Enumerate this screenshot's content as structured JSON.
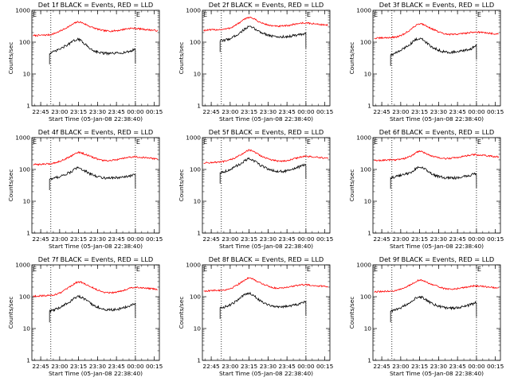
{
  "figure": {
    "series_legend": "BLACK = Events, RED = LLD"
  },
  "chart_data": [
    {
      "type": "line",
      "title": "Det 1f BLACK = Events, RED = LLD",
      "xlabel": "Start Time (05-Jan-08 22:38:40)",
      "ylabel": "Counts/sec",
      "x_ticks": [
        "22:45",
        "23:00",
        "23:15",
        "23:30",
        "23:45",
        "00:00",
        "00:15"
      ],
      "y_scale": "log",
      "ylim": [
        1,
        1000
      ],
      "y_ticks": [
        "1",
        "10",
        "100",
        "1000"
      ],
      "markers": [
        {
          "label": "E",
          "x": "22:38"
        },
        {
          "label": "E",
          "x": "00:00"
        }
      ],
      "dotted_lines_x": [
        "22:53",
        "00:00"
      ],
      "x": [
        "22:52",
        "23:00",
        "23:08",
        "23:15",
        "23:25",
        "23:35",
        "23:45",
        "23:55",
        "00:00"
      ],
      "series": [
        {
          "color": "#ff0000",
          "values": [
            170,
            220,
            320,
            430,
            300,
            230,
            230,
            270,
            270
          ]
        },
        {
          "color": "#000000",
          "values": [
            45,
            60,
            90,
            120,
            60,
            45,
            45,
            50,
            60
          ]
        }
      ]
    },
    {
      "type": "line",
      "title": "Det 2f BLACK = Events, RED = LLD",
      "xlabel": "Start Time (05-Jan-08 22:38:40)",
      "ylabel": "Counts/sec",
      "x_ticks": [
        "22:45",
        "23:00",
        "23:15",
        "23:30",
        "23:45",
        "00:00",
        "00:15"
      ],
      "y_scale": "log",
      "ylim": [
        1,
        1000
      ],
      "y_ticks": [
        "1",
        "10",
        "100",
        "1000"
      ],
      "markers": [
        {
          "label": "E",
          "x": "22:38"
        },
        {
          "label": "E",
          "x": "00:00"
        }
      ],
      "dotted_lines_x": [
        "22:53",
        "00:00"
      ],
      "x": [
        "22:52",
        "23:00",
        "23:08",
        "23:15",
        "23:25",
        "23:35",
        "23:45",
        "23:55",
        "00:00"
      ],
      "series": [
        {
          "color": "#ff0000",
          "values": [
            250,
            280,
            420,
            600,
            400,
            320,
            330,
            390,
            400
          ]
        },
        {
          "color": "#000000",
          "values": [
            110,
            130,
            200,
            300,
            200,
            150,
            150,
            170,
            180
          ]
        }
      ]
    },
    {
      "type": "line",
      "title": "Det 3f BLACK = Events, RED = LLD",
      "xlabel": "Start Time (05-Jan-08 22:38:40)",
      "ylabel": "Counts/sec",
      "x_ticks": [
        "22:45",
        "23:00",
        "23:15",
        "23:30",
        "23:45",
        "00:00",
        "00:15"
      ],
      "y_scale": "log",
      "ylim": [
        1,
        1000
      ],
      "y_ticks": [
        "1",
        "10",
        "100",
        "1000"
      ],
      "markers": [
        {
          "label": "E",
          "x": "22:38"
        },
        {
          "label": "E",
          "x": "00:00"
        }
      ],
      "dotted_lines_x": [
        "22:53",
        "00:00"
      ],
      "x": [
        "22:52",
        "23:00",
        "23:08",
        "23:15",
        "23:25",
        "23:35",
        "23:45",
        "23:55",
        "00:00"
      ],
      "series": [
        {
          "color": "#ff0000",
          "values": [
            140,
            160,
            250,
            380,
            260,
            180,
            180,
            200,
            210
          ]
        },
        {
          "color": "#000000",
          "values": [
            40,
            55,
            90,
            130,
            70,
            50,
            50,
            60,
            80
          ]
        }
      ]
    },
    {
      "type": "line",
      "title": "Det 4f BLACK = Events, RED = LLD",
      "xlabel": "Start Time (05-Jan-08 22:38:40)",
      "ylabel": "Counts/sec",
      "x_ticks": [
        "22:45",
        "23:00",
        "23:15",
        "23:30",
        "23:45",
        "00:00",
        "00:15"
      ],
      "y_scale": "log",
      "ylim": [
        1,
        1000
      ],
      "y_ticks": [
        "1",
        "10",
        "100",
        "1000"
      ],
      "markers": [
        {
          "label": "E",
          "x": "22:38"
        },
        {
          "label": "E",
          "x": "00:00"
        }
      ],
      "dotted_lines_x": [
        "22:53",
        "00:00"
      ],
      "x": [
        "22:52",
        "23:00",
        "23:08",
        "23:15",
        "23:25",
        "23:35",
        "23:45",
        "23:55",
        "00:00"
      ],
      "series": [
        {
          "color": "#ff0000",
          "values": [
            150,
            180,
            250,
            340,
            250,
            190,
            200,
            240,
            250
          ]
        },
        {
          "color": "#000000",
          "values": [
            50,
            60,
            80,
            110,
            70,
            55,
            55,
            60,
            70
          ]
        }
      ]
    },
    {
      "type": "line",
      "title": "Det 5f BLACK = Events, RED = LLD",
      "xlabel": "Start Time (05-Jan-08 22:38:40)",
      "ylabel": "Counts/sec",
      "x_ticks": [
        "22:45",
        "23:00",
        "23:15",
        "23:30",
        "23:45",
        "00:00",
        "00:15"
      ],
      "y_scale": "log",
      "ylim": [
        1,
        1000
      ],
      "y_ticks": [
        "1",
        "10",
        "100",
        "1000"
      ],
      "markers": [
        {
          "label": "E",
          "x": "22:38"
        },
        {
          "label": "E",
          "x": "00:00"
        }
      ],
      "dotted_lines_x": [
        "22:53",
        "00:00"
      ],
      "x": [
        "22:52",
        "23:00",
        "23:08",
        "23:15",
        "23:25",
        "23:35",
        "23:45",
        "23:55",
        "00:00"
      ],
      "series": [
        {
          "color": "#ff0000",
          "values": [
            170,
            200,
            280,
            400,
            260,
            190,
            190,
            240,
            260
          ]
        },
        {
          "color": "#000000",
          "values": [
            80,
            100,
            150,
            210,
            130,
            90,
            90,
            120,
            140
          ]
        }
      ]
    },
    {
      "type": "line",
      "title": "Det 6f BLACK = Events, RED = LLD",
      "xlabel": "Start Time (05-Jan-08 22:38:40)",
      "ylabel": "Counts/sec",
      "x_ticks": [
        "22:45",
        "23:00",
        "23:15",
        "23:30",
        "23:45",
        "00:00",
        "00:15"
      ],
      "y_scale": "log",
      "ylim": [
        1,
        1000
      ],
      "y_ticks": [
        "1",
        "10",
        "100",
        "1000"
      ],
      "markers": [
        {
          "label": "E",
          "x": "22:38"
        },
        {
          "label": "E",
          "x": "00:00"
        }
      ],
      "dotted_lines_x": [
        "22:53",
        "00:00"
      ],
      "x": [
        "22:52",
        "23:00",
        "23:08",
        "23:15",
        "23:25",
        "23:35",
        "23:45",
        "23:55",
        "00:00"
      ],
      "series": [
        {
          "color": "#ff0000",
          "values": [
            200,
            210,
            260,
            370,
            260,
            220,
            240,
            280,
            290
          ]
        },
        {
          "color": "#000000",
          "values": [
            55,
            65,
            80,
            120,
            70,
            55,
            55,
            65,
            75
          ]
        }
      ]
    },
    {
      "type": "line",
      "title": "Det 7f BLACK = Events, RED = LLD",
      "xlabel": "Start Time (05-Jan-08 22:38:40)",
      "ylabel": "Counts/sec",
      "x_ticks": [
        "22:45",
        "23:00",
        "23:15",
        "23:30",
        "23:45",
        "00:00",
        "00:15"
      ],
      "y_scale": "log",
      "ylim": [
        1,
        1000
      ],
      "y_ticks": [
        "1",
        "10",
        "100",
        "1000"
      ],
      "markers": [
        {
          "label": "E",
          "x": "22:38"
        },
        {
          "label": "E",
          "x": "00:00"
        }
      ],
      "dotted_lines_x": [
        "22:53",
        "00:00"
      ],
      "x": [
        "22:52",
        "23:00",
        "23:08",
        "23:15",
        "23:25",
        "23:35",
        "23:45",
        "23:55",
        "00:00"
      ],
      "series": [
        {
          "color": "#ff0000",
          "values": [
            110,
            130,
            200,
            290,
            200,
            140,
            140,
            180,
            200
          ]
        },
        {
          "color": "#000000",
          "values": [
            35,
            45,
            70,
            100,
            60,
            40,
            40,
            50,
            60
          ]
        }
      ]
    },
    {
      "type": "line",
      "title": "Det 8f BLACK = Events, RED = LLD",
      "xlabel": "Start Time (05-Jan-08 22:38:40)",
      "ylabel": "Counts/sec",
      "x_ticks": [
        "22:45",
        "23:00",
        "23:15",
        "23:30",
        "23:45",
        "00:00",
        "00:15"
      ],
      "y_scale": "log",
      "ylim": [
        1,
        1000
      ],
      "y_ticks": [
        "1",
        "10",
        "100",
        "1000"
      ],
      "markers": [
        {
          "label": "E",
          "x": "22:38"
        },
        {
          "label": "E",
          "x": "00:00"
        }
      ],
      "dotted_lines_x": [
        "22:53",
        "00:00"
      ],
      "x": [
        "22:52",
        "23:00",
        "23:08",
        "23:15",
        "23:25",
        "23:35",
        "23:45",
        "23:55",
        "00:00"
      ],
      "series": [
        {
          "color": "#ff0000",
          "values": [
            160,
            180,
            270,
            380,
            260,
            190,
            200,
            230,
            240
          ]
        },
        {
          "color": "#000000",
          "values": [
            45,
            55,
            90,
            130,
            70,
            50,
            50,
            60,
            70
          ]
        }
      ]
    },
    {
      "type": "line",
      "title": "Det 9f BLACK = Events, RED = LLD",
      "xlabel": "Start Time (05-Jan-08 22:38:40)",
      "ylabel": "Counts/sec",
      "x_ticks": [
        "22:45",
        "23:00",
        "23:15",
        "23:30",
        "23:45",
        "00:00",
        "00:15"
      ],
      "y_scale": "log",
      "ylim": [
        1,
        1000
      ],
      "y_ticks": [
        "1",
        "10",
        "100",
        "1000"
      ],
      "markers": [
        {
          "label": "E",
          "x": "22:38"
        },
        {
          "label": "E",
          "x": "00:00"
        }
      ],
      "dotted_lines_x": [
        "22:53",
        "00:00"
      ],
      "x": [
        "22:52",
        "23:00",
        "23:08",
        "23:15",
        "23:25",
        "23:35",
        "23:45",
        "23:55",
        "00:00"
      ],
      "series": [
        {
          "color": "#ff0000",
          "values": [
            150,
            170,
            240,
            330,
            240,
            180,
            180,
            210,
            220
          ]
        },
        {
          "color": "#000000",
          "values": [
            35,
            45,
            70,
            100,
            60,
            45,
            45,
            55,
            65
          ]
        }
      ]
    }
  ]
}
